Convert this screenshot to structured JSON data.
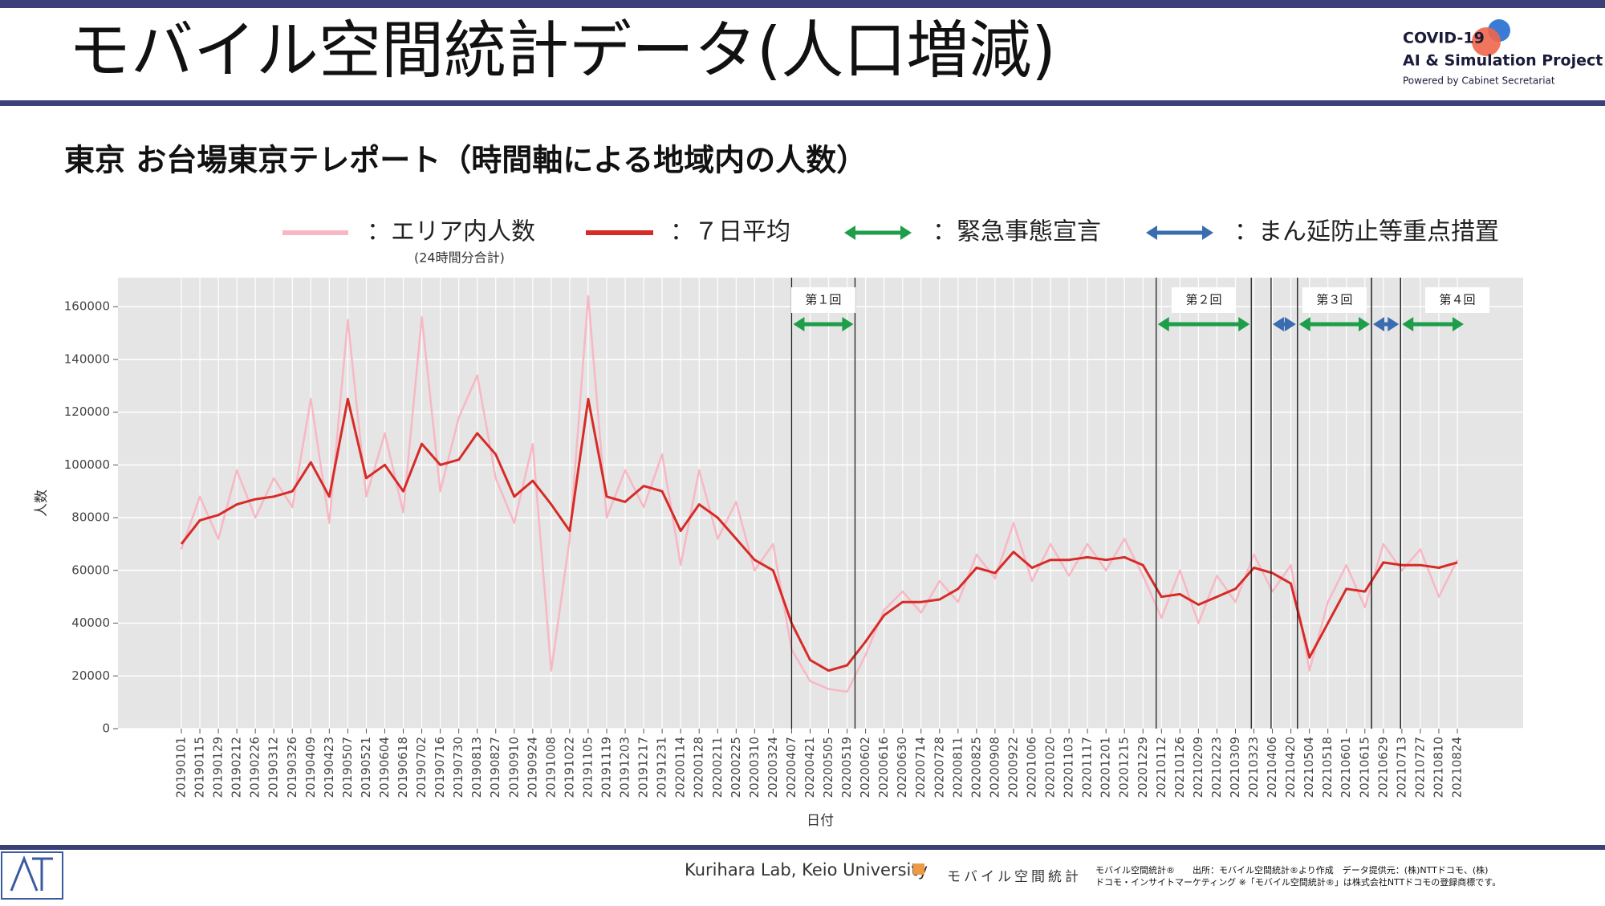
{
  "header": {
    "title": "モバイル空間統計データ(人口増減)",
    "logo": [
      "COVID-19",
      "AI & Simulation Project",
      "Powered by Cabinet Secretariat"
    ]
  },
  "footer": {
    "lab": "Kurihara Lab, Keio University",
    "brand": "モバイル空間統計",
    "credit": [
      "モバイル空間統計®　　出所：モバイル空間統計®より作成　データ提供元：(株)NTTドコモ、(株)",
      "ドコモ・インサイトマーケティング ※「モバイル空間統計®」は株式会社NTTドコモの登録商標です。"
    ]
  },
  "chart_data": {
    "type": "line",
    "title": "東京 お台場東京テレポート（時間軸による地域内の人数）",
    "xlabel": "日付",
    "ylabel": "人数",
    "legend_note": "(24時間分合計)",
    "categories": [
      "20190101",
      "20190115",
      "20190129",
      "20190212",
      "20190226",
      "20190312",
      "20190326",
      "20190409",
      "20190423",
      "20190507",
      "20190521",
      "20190604",
      "20190618",
      "20190702",
      "20190716",
      "20190730",
      "20190813",
      "20190827",
      "20190910",
      "20190924",
      "20191008",
      "20191022",
      "20191105",
      "20191119",
      "20191203",
      "20191217",
      "20191231",
      "20200114",
      "20200128",
      "20200211",
      "20200225",
      "20200310",
      "20200324",
      "20200407",
      "20200421",
      "20200505",
      "20200519",
      "20200602",
      "20200616",
      "20200630",
      "20200714",
      "20200728",
      "20200811",
      "20200825",
      "20200908",
      "20200922",
      "20201006",
      "20201020",
      "20201103",
      "20201117",
      "20201201",
      "20201215",
      "20201229",
      "20210112",
      "20210126",
      "20210209",
      "20210223",
      "20210309",
      "20210323",
      "20210406",
      "20210420",
      "20210504",
      "20210518",
      "20210601",
      "20210615",
      "20210629",
      "20210713",
      "20210727",
      "20210810",
      "20210824"
    ],
    "series": [
      {
        "name": "：エリア内人数",
        "color": "#f7b8c4",
        "values": [
          68000,
          88000,
          72000,
          98000,
          80000,
          95000,
          84000,
          125000,
          78000,
          155000,
          88000,
          112000,
          82000,
          156000,
          90000,
          118000,
          134000,
          95000,
          78000,
          108000,
          22000,
          72000,
          164000,
          80000,
          98000,
          84000,
          104000,
          62000,
          98000,
          72000,
          86000,
          60000,
          70000,
          30000,
          18000,
          15000,
          14000,
          28000,
          45000,
          52000,
          44000,
          56000,
          48000,
          66000,
          57000,
          78000,
          56000,
          70000,
          58000,
          70000,
          60000,
          72000,
          58000,
          42000,
          60000,
          40000,
          58000,
          48000,
          66000,
          52000,
          62000,
          22000,
          48000,
          62000,
          46000,
          70000,
          60000,
          68000,
          50000,
          64000
        ]
      },
      {
        "name": "：７日平均",
        "color": "#d62b27",
        "values": [
          70000,
          79000,
          81000,
          85000,
          87000,
          88000,
          90000,
          101000,
          88000,
          125000,
          95000,
          100000,
          90000,
          108000,
          100000,
          102000,
          112000,
          104000,
          88000,
          94000,
          85000,
          75000,
          125000,
          88000,
          86000,
          92000,
          90000,
          75000,
          85000,
          80000,
          72000,
          64000,
          60000,
          40000,
          26000,
          22000,
          24000,
          33000,
          43000,
          48000,
          48000,
          49000,
          53000,
          61000,
          59000,
          67000,
          61000,
          64000,
          64000,
          65000,
          64000,
          65000,
          62000,
          50000,
          51000,
          47000,
          50000,
          53000,
          61000,
          59000,
          55000,
          27000,
          40000,
          53000,
          52000,
          63000,
          62000,
          62000,
          61000,
          63000
        ]
      }
    ],
    "period_types": [
      {
        "name": "：緊急事態宣言",
        "color": "#1e9e4a"
      },
      {
        "name": "：まん延防止等重点措置",
        "color": "#3a6cb0"
      }
    ],
    "periods": [
      {
        "label": "第１回",
        "type": 0,
        "start": "20200407",
        "end": "20200525"
      },
      {
        "label": "第２回",
        "type": 0,
        "start": "20210108",
        "end": "20210321"
      },
      {
        "type": 1,
        "start": "20210405",
        "end": "20210425"
      },
      {
        "label": "第３回",
        "type": 0,
        "start": "20210425",
        "end": "20210620"
      },
      {
        "type": 1,
        "start": "20210620",
        "end": "20210712"
      },
      {
        "label": "第４回",
        "type": 0,
        "start": "20210712",
        "end": null
      }
    ],
    "ylim": [
      0,
      171000
    ],
    "yticks": [
      0,
      20000,
      40000,
      60000,
      80000,
      100000,
      120000,
      140000,
      160000
    ],
    "grid": true
  }
}
